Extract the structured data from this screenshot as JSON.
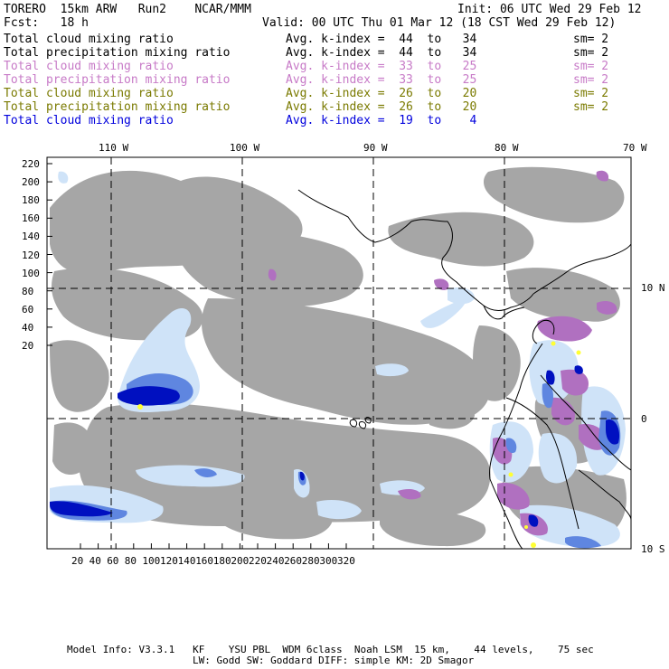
{
  "header": {
    "left1": "TORERO  15km ARW   Run2    NCAR/MMM",
    "right1": "Init: 06 UTC Wed 29 Feb 12",
    "left2": "Fcst:   18 h",
    "right2": "Valid: 00 UTC Thu 01 Mar 12 (18 CST Wed 29 Feb 12)"
  },
  "fields": [
    {
      "name": "Total cloud mixing ratio",
      "k": "Avg. k-index =  44  to   34",
      "sm": "sm= 2",
      "color": "#000000"
    },
    {
      "name": "Total precipitation mixing ratio",
      "k": "Avg. k-index =  44  to   34",
      "sm": "sm= 2",
      "color": "#000000"
    },
    {
      "name": "Total cloud mixing ratio",
      "k": "Avg. k-index =  33  to   25",
      "sm": "sm= 2",
      "color": "#c77ac7"
    },
    {
      "name": "Total precipitation mixing ratio",
      "k": "Avg. k-index =  33  to   25",
      "sm": "sm= 2",
      "color": "#c77ac7"
    },
    {
      "name": "Total cloud mixing ratio",
      "k": "Avg. k-index =  26  to   20",
      "sm": "sm= 2",
      "color": "#7a7a00"
    },
    {
      "name": "Total precipitation mixing ratio",
      "k": "Avg. k-index =  26  to   20",
      "sm": "sm= 2",
      "color": "#7a7a00"
    },
    {
      "name": "Total cloud mixing ratio",
      "k": "Avg. k-index =  19  to    4",
      "sm": "",
      "color": "#0000dd"
    }
  ],
  "axes": {
    "lon_labels": [
      "110 W",
      "100 W",
      "90 W",
      "80 W",
      "70 W"
    ],
    "lat_labels": [
      "10 N",
      "0",
      "10 S"
    ],
    "y_ticks": [
      "220",
      "200",
      "180",
      "160",
      "140",
      "120",
      "100",
      "80",
      "60",
      "40",
      "20"
    ],
    "x_ticks": [
      "20",
      "40",
      "60",
      "80",
      "100",
      "120",
      "140",
      "160",
      "180",
      "200",
      "220",
      "240",
      "260",
      "280",
      "300",
      "320"
    ]
  },
  "footer": {
    "line1": "Model Info: V3.3.1   KF    YSU PBL  WDM 6class  Noah LSM  15 km,    44 levels,    75 sec",
    "line2": "LW: Godd SW: Goddard DIFF: simple KM: 2D Smagor"
  },
  "colors": {
    "gray": "#a6a6a6",
    "light_blue": "#cfe3f8",
    "mid_blue": "#5f86e0",
    "dark_blue": "#0010c0",
    "magenta": "#b070c0",
    "yellow": "#ffff33"
  }
}
